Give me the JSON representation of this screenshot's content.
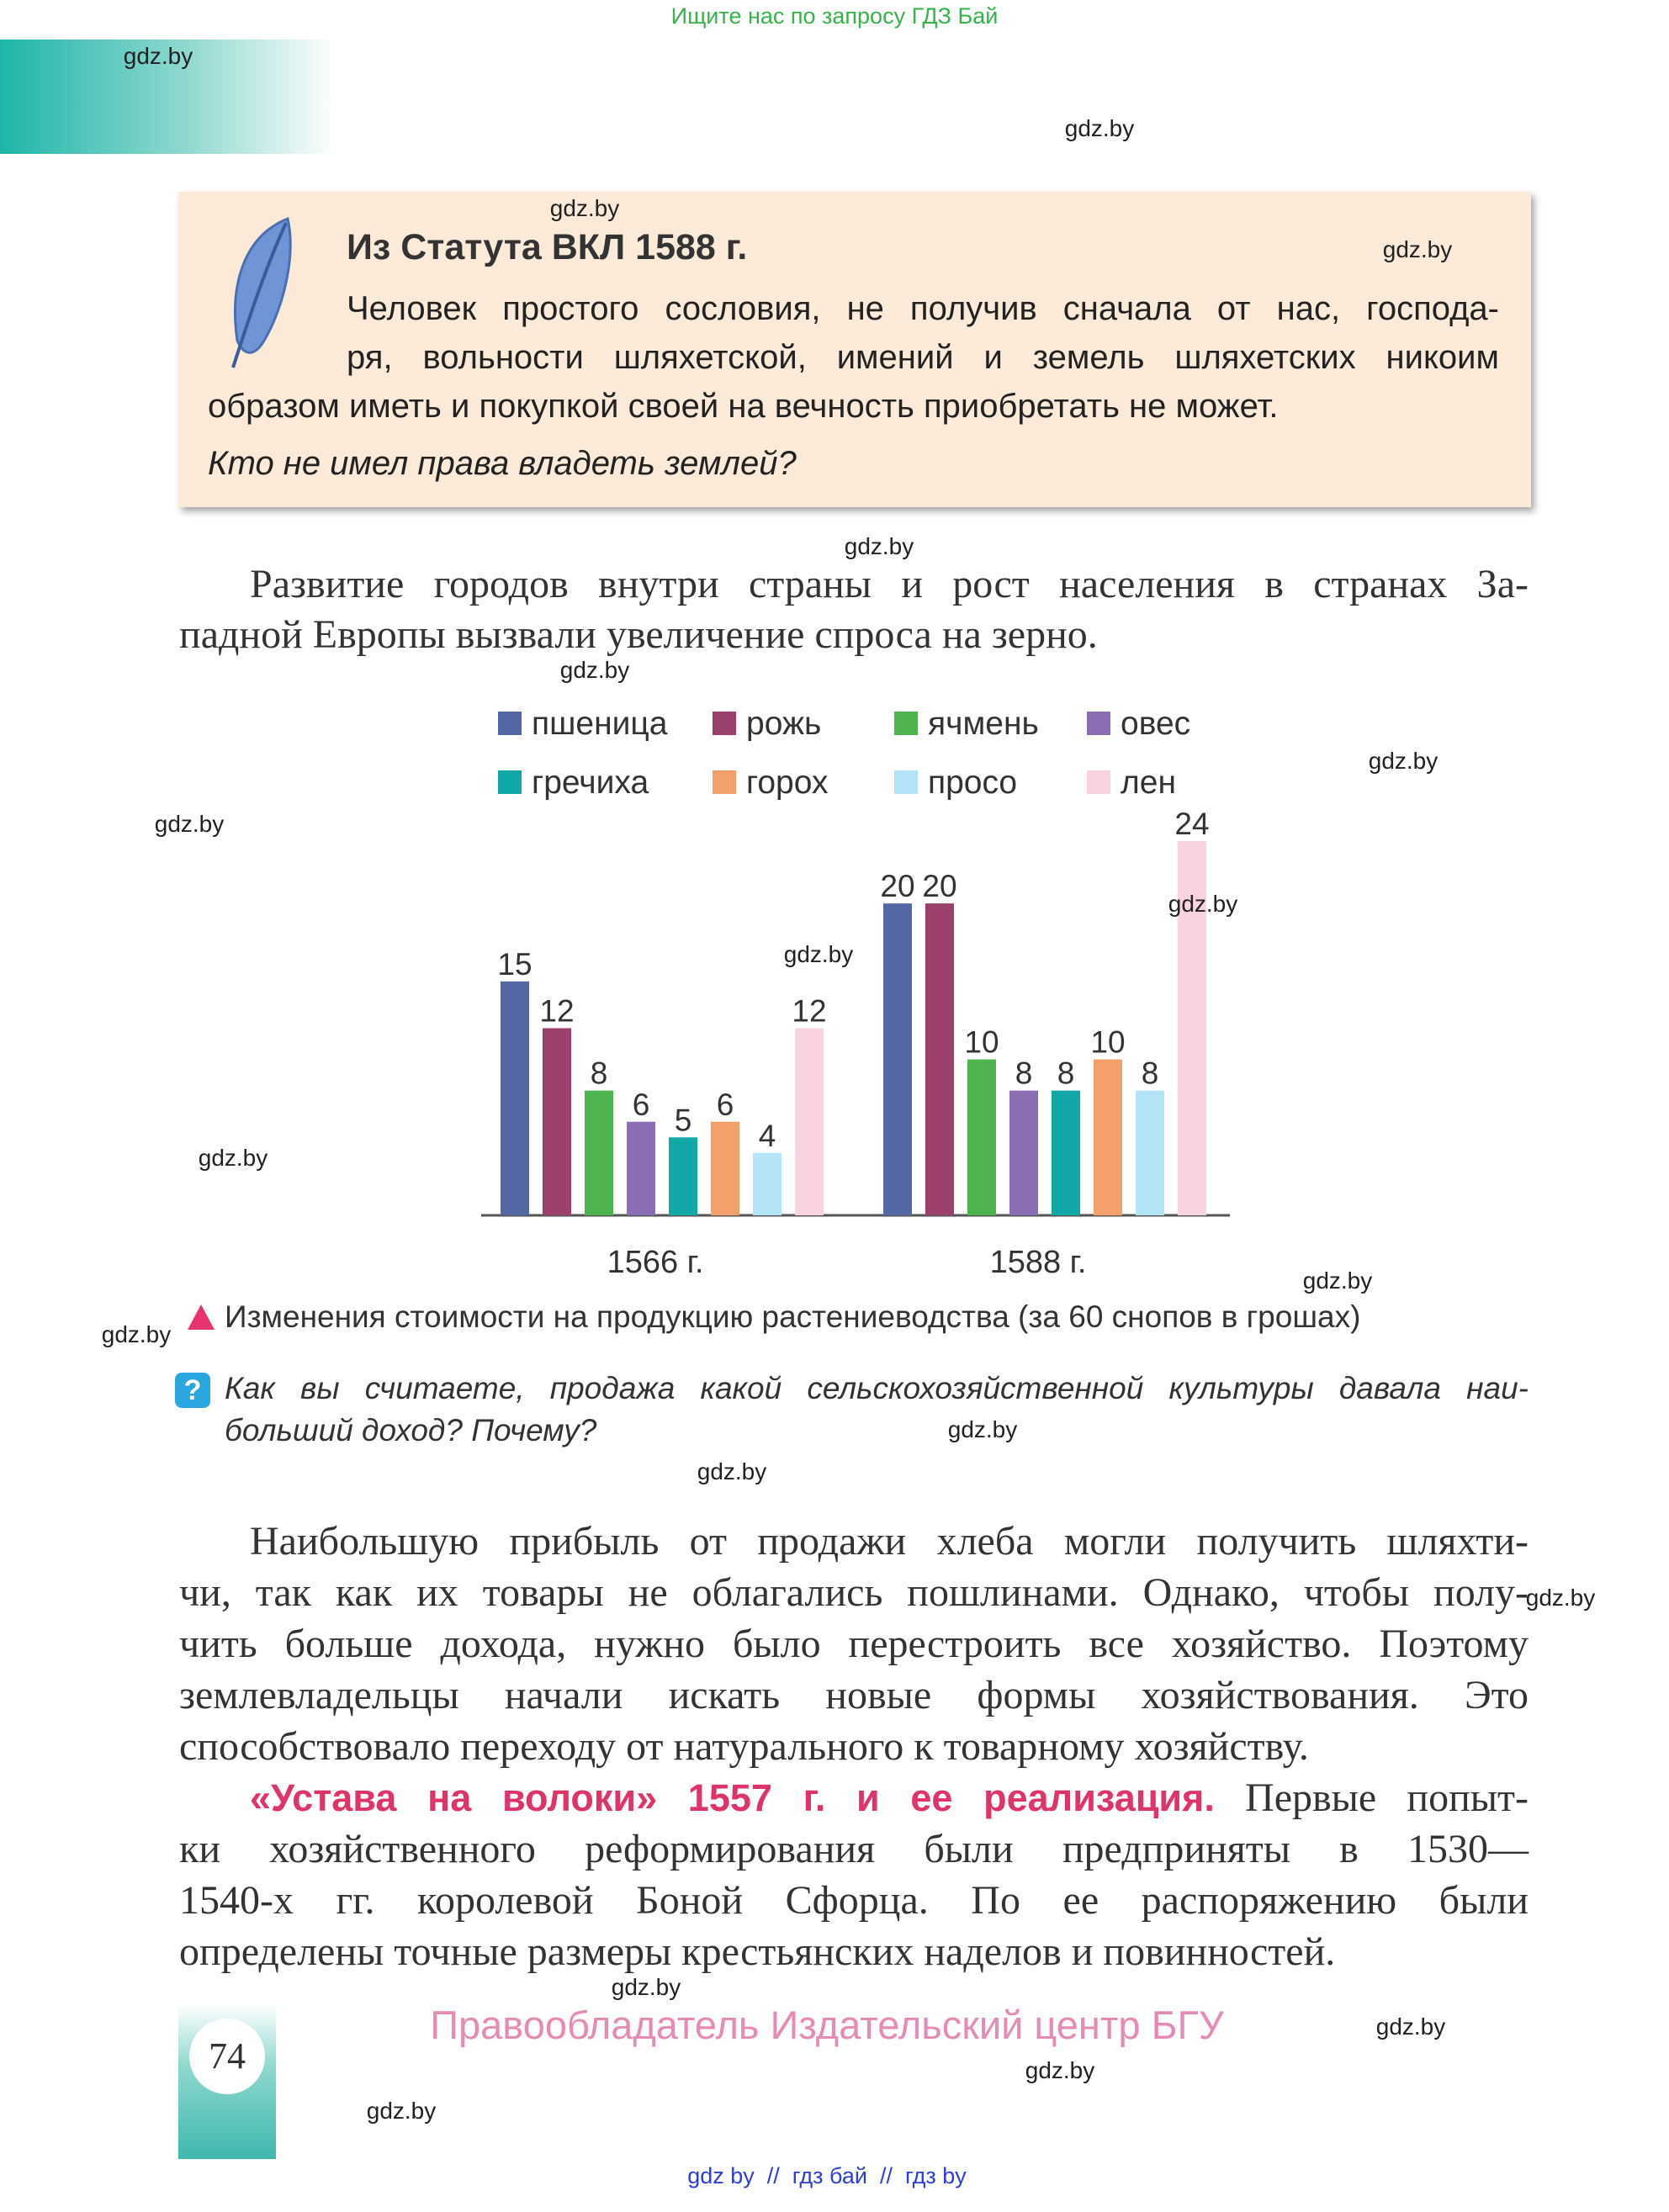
{
  "header": {
    "search_note": "Ищите нас по запросу ГДЗ Бай"
  },
  "watermarks": [
    "gdz.by",
    "gdz.by",
    "gdz.by",
    "gdz.by",
    "gdz.by",
    "gdz.by",
    "gdz.by",
    "gdz.by",
    "gdz.by",
    "gdz.by",
    "gdz.by",
    "gdz.by",
    "gdz.by",
    "gdz.by",
    "gdz.by",
    "gdz.by",
    "gdz.by",
    "gdz.by",
    "gdz.by",
    "gdz.by"
  ],
  "source_box": {
    "title": "Из Статута ВКЛ 1588 г.",
    "lines": [
      "Человек простого сословия, не получив сначала от нас, господа-",
      "ря, вольности шляхетской, имений и земель шляхетских никоим",
      "образом иметь и покупкой своей на вечность приобретать не может."
    ],
    "question": "Кто не имел права владеть землей?"
  },
  "paragraph_1": [
    "Развитие городов внутри страны и рост населения в странах За-",
    "падной Европы вызвали увеличение спроса на зерно."
  ],
  "chart_data": {
    "type": "bar",
    "categories": [
      "1566 г.",
      "1588 г."
    ],
    "series": [
      {
        "name": "пшеница",
        "color": "#5568a6",
        "values": [
          15,
          20
        ]
      },
      {
        "name": "рожь",
        "color": "#9b3f6d",
        "values": [
          12,
          20
        ]
      },
      {
        "name": "ячмень",
        "color": "#4cb34f",
        "values": [
          8,
          10
        ]
      },
      {
        "name": "овес",
        "color": "#8a6db3",
        "values": [
          6,
          8
        ]
      },
      {
        "name": "гречиха",
        "color": "#12a8a8",
        "values": [
          5,
          8
        ]
      },
      {
        "name": "горох",
        "color": "#f4a06a",
        "values": [
          6,
          10
        ]
      },
      {
        "name": "просо",
        "color": "#b3e3f7",
        "values": [
          4,
          8
        ]
      },
      {
        "name": "лен",
        "color": "#f9d3e0",
        "values": [
          12,
          24
        ]
      }
    ],
    "caption": "Изменения стоимости на продукцию растениеводства (за 60 снопов в грошах)"
  },
  "question": {
    "icon": "?",
    "lines": [
      "Как вы считаете, продажа какой сельскохозяйственной культуры давала наи-",
      "больший доход? Почему?"
    ]
  },
  "paragraph_2": [
    "Наибольшую прибыль от продажи хлеба могли получить шляхти-",
    "чи, так как их товары не облагались пошлинами. Однако, чтобы полу-",
    "чить больше дохода, нужно было перестроить все хозяйство. Поэтому",
    "землевладельцы начали искать новые формы хозяйствования. Это",
    "способствовало переходу от натурального к товарному хозяйству."
  ],
  "paragraph_3": {
    "heading": "«Устава на волоки» 1557 г. и ее реализация.",
    "lines": [
      "Первые попыт-",
      "ки хозяйственного реформирования были предприняты в 1530—",
      "1540-х гг. королевой Боной Сфорца. По ее распоряжению были",
      "определены точные размеры крестьянских наделов и повинностей."
    ]
  },
  "footer": {
    "page_number": "74",
    "copyright": "Правообладатель Издательский центр БГУ",
    "links": "gdz by  //  гдз бай  //  гдз by"
  }
}
